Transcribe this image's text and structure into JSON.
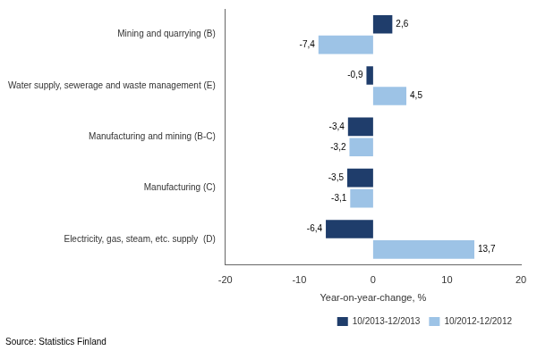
{
  "chart_data": {
    "type": "bar",
    "orientation": "horizontal",
    "categories": [
      "Electricity, gas, steam, etc. supply  (D)",
      "Manufacturing (C)",
      "Manufacturing and mining (B-C)",
      "Water supply, sewerage and waste management (E)",
      "Mining and quarrying (B)"
    ],
    "series": [
      {
        "name": "10/2013-12/2013",
        "color": "#1F3D6B",
        "values": [
          -6.4,
          -3.5,
          -3.4,
          -0.9,
          2.6
        ],
        "value_labels": [
          "-6,4",
          "-3,5",
          "-3,4",
          "-0,9",
          "2,6"
        ]
      },
      {
        "name": "10/2012-12/2012",
        "color": "#9DC3E6",
        "values": [
          13.7,
          -3.1,
          -3.2,
          4.5,
          -7.4
        ],
        "value_labels": [
          "13,7",
          "-3,1",
          "-3,2",
          "4,5",
          "-7,4"
        ]
      }
    ],
    "xlabel": "Year-on-year-change, %",
    "xlim": [
      -20,
      20
    ],
    "xticks": [
      -20,
      -10,
      0,
      10,
      20
    ],
    "data_labels": true,
    "legend": "lower right",
    "grid": false,
    "annotations": [
      "Source: Statistics Finland"
    ]
  }
}
